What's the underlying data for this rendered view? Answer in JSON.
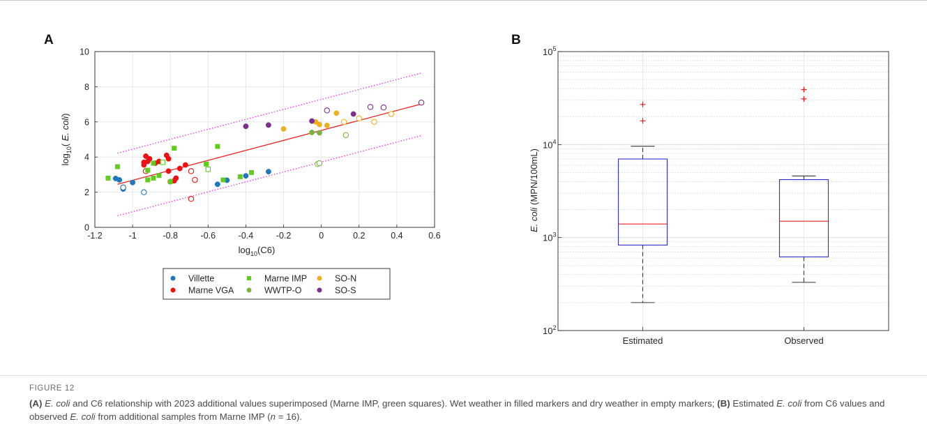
{
  "figure": {
    "label": "FIGURE 12",
    "caption_parts": [
      {
        "text": "(A) ",
        "style": "b"
      },
      {
        "text": "E. coli",
        "style": "i"
      },
      {
        "text": " and C6 relationship with 2023 additional values superimposed (Marne IMP, green squares). Wet weather in filled markers and dry weather in empty markers; ",
        "style": ""
      },
      {
        "text": "(B)",
        "style": "b"
      },
      {
        "text": " Estimated ",
        "style": ""
      },
      {
        "text": "E. coli",
        "style": "i"
      },
      {
        "text": " from C6 values and observed ",
        "style": ""
      },
      {
        "text": "E. coli",
        "style": "i"
      },
      {
        "text": " from additional samples from Marne IMP (",
        "style": ""
      },
      {
        "text": "n",
        "style": "i"
      },
      {
        "text": " = 16).",
        "style": ""
      }
    ]
  },
  "colors": {
    "Villette": "#1f77bd",
    "Marne VGA": "#ee1111",
    "Marne IMP": "#5fcd1e",
    "WWTP-O": "#79b443",
    "SO-N": "#edb120",
    "SO-S": "#7e2f8e",
    "fit": "#ee2222",
    "band": "#f03cf0",
    "box": "#2b2bd8",
    "median": "#ee2222",
    "outlier": "#ee1111",
    "whisker": "#333333"
  },
  "chart_data": [
    {
      "panel": "A",
      "type": "scatter",
      "xlabel": {
        "base": "log",
        "sub": "10",
        "rest": "(C6)"
      },
      "ylabel": {
        "base": "log",
        "sub": "10",
        "open": "( ",
        "italic": "E. coli",
        "close": ")"
      },
      "xlim": [
        -1.2,
        0.6
      ],
      "ylim": [
        0,
        10
      ],
      "xticks": [
        -1.2,
        -1,
        -0.8,
        -0.6,
        -0.4,
        -0.2,
        0,
        0.2,
        0.4,
        0.6
      ],
      "xtick_labels": [
        "-1.2",
        "-1",
        "-0.8",
        "-0.6",
        "-0.4",
        "-0.2",
        "0",
        "0.2",
        "0.4",
        "0.6"
      ],
      "yticks": [
        0,
        2,
        4,
        6,
        8,
        10
      ],
      "ytick_labels": [
        "0",
        "2",
        "4",
        "6",
        "8",
        "10"
      ],
      "grid": true,
      "legend_placement": "below",
      "fit_line": {
        "x": [
          -1.08,
          0.53
        ],
        "y": [
          2.45,
          7.02
        ]
      },
      "prediction_band_upper": {
        "x": [
          -1.08,
          0.53
        ],
        "y": [
          4.22,
          8.78
        ]
      },
      "prediction_band_lower": {
        "x": [
          -1.08,
          0.53
        ],
        "y": [
          0.66,
          5.22
        ]
      },
      "series": [
        {
          "name": "Villette",
          "marker": "circle",
          "points": [
            {
              "x": -1.09,
              "y": 2.78,
              "filled": true
            },
            {
              "x": -1.07,
              "y": 2.7,
              "filled": true
            },
            {
              "x": -1.05,
              "y": 2.18,
              "filled": true
            },
            {
              "x": -1.05,
              "y": 2.27,
              "filled": false
            },
            {
              "x": -1.0,
              "y": 2.55,
              "filled": true
            },
            {
              "x": -0.94,
              "y": 2.0,
              "filled": false
            },
            {
              "x": -0.55,
              "y": 2.45,
              "filled": true
            },
            {
              "x": -0.5,
              "y": 2.68,
              "filled": true
            },
            {
              "x": -0.4,
              "y": 2.93,
              "filled": true
            },
            {
              "x": -0.28,
              "y": 3.17,
              "filled": true
            }
          ]
        },
        {
          "name": "Marne VGA",
          "marker": "circle",
          "points": [
            {
              "x": -0.94,
              "y": 3.55,
              "filled": true
            },
            {
              "x": -0.94,
              "y": 3.7,
              "filled": true
            },
            {
              "x": -0.93,
              "y": 4.05,
              "filled": true
            },
            {
              "x": -0.92,
              "y": 3.75,
              "filled": true
            },
            {
              "x": -0.91,
              "y": 3.9,
              "filled": true
            },
            {
              "x": -0.93,
              "y": 3.2,
              "filled": false
            },
            {
              "x": -0.88,
              "y": 3.65,
              "filled": true
            },
            {
              "x": -0.86,
              "y": 3.75,
              "filled": true
            },
            {
              "x": -0.82,
              "y": 4.1,
              "filled": true
            },
            {
              "x": -0.81,
              "y": 3.9,
              "filled": true
            },
            {
              "x": -0.81,
              "y": 3.2,
              "filled": true
            },
            {
              "x": -0.8,
              "y": 2.6,
              "filled": true
            },
            {
              "x": -0.78,
              "y": 2.65,
              "filled": true
            },
            {
              "x": -0.77,
              "y": 2.8,
              "filled": true
            },
            {
              "x": -0.75,
              "y": 3.35,
              "filled": true
            },
            {
              "x": -0.72,
              "y": 3.55,
              "filled": true
            },
            {
              "x": -0.69,
              "y": 3.2,
              "filled": false
            },
            {
              "x": -0.67,
              "y": 2.7,
              "filled": false
            },
            {
              "x": -0.69,
              "y": 1.62,
              "filled": false
            }
          ]
        },
        {
          "name": "Marne IMP",
          "marker": "square",
          "points": [
            {
              "x": -1.13,
              "y": 2.8,
              "filled": true
            },
            {
              "x": -1.08,
              "y": 3.45,
              "filled": true
            },
            {
              "x": -0.92,
              "y": 2.7,
              "filled": true
            },
            {
              "x": -0.92,
              "y": 3.25,
              "filled": true
            },
            {
              "x": -0.89,
              "y": 2.8,
              "filled": true
            },
            {
              "x": -0.89,
              "y": 3.65,
              "filled": true
            },
            {
              "x": -0.86,
              "y": 2.95,
              "filled": true
            },
            {
              "x": -0.84,
              "y": 3.7,
              "filled": false
            },
            {
              "x": -0.8,
              "y": 2.6,
              "filled": true
            },
            {
              "x": -0.78,
              "y": 4.5,
              "filled": true
            },
            {
              "x": -0.61,
              "y": 3.6,
              "filled": true
            },
            {
              "x": -0.6,
              "y": 3.3,
              "filled": false
            },
            {
              "x": -0.55,
              "y": 4.6,
              "filled": true
            },
            {
              "x": -0.52,
              "y": 2.7,
              "filled": true
            },
            {
              "x": -0.43,
              "y": 2.88,
              "filled": true
            },
            {
              "x": -0.37,
              "y": 3.12,
              "filled": true
            }
          ]
        },
        {
          "name": "WWTP-O",
          "marker": "circle",
          "points": [
            {
              "x": -0.05,
              "y": 5.4,
              "filled": true
            },
            {
              "x": -0.01,
              "y": 5.38,
              "filled": true
            },
            {
              "x": -0.02,
              "y": 3.6,
              "filled": false
            },
            {
              "x": -0.01,
              "y": 3.65,
              "filled": false
            },
            {
              "x": 0.13,
              "y": 5.25,
              "filled": false
            }
          ]
        },
        {
          "name": "SO-N",
          "marker": "circle",
          "points": [
            {
              "x": -0.2,
              "y": 5.6,
              "filled": true
            },
            {
              "x": -0.03,
              "y": 6.0,
              "filled": true
            },
            {
              "x": -0.01,
              "y": 5.85,
              "filled": true
            },
            {
              "x": 0.03,
              "y": 5.8,
              "filled": true
            },
            {
              "x": 0.08,
              "y": 6.5,
              "filled": true
            },
            {
              "x": 0.12,
              "y": 6.0,
              "filled": false
            },
            {
              "x": 0.2,
              "y": 6.2,
              "filled": false
            },
            {
              "x": 0.28,
              "y": 6.0,
              "filled": false
            },
            {
              "x": 0.37,
              "y": 6.45,
              "filled": false
            }
          ]
        },
        {
          "name": "SO-S",
          "marker": "circle",
          "points": [
            {
              "x": -0.4,
              "y": 5.75,
              "filled": true
            },
            {
              "x": -0.28,
              "y": 5.82,
              "filled": true
            },
            {
              "x": -0.05,
              "y": 6.05,
              "filled": true
            },
            {
              "x": 0.03,
              "y": 6.65,
              "filled": false
            },
            {
              "x": 0.17,
              "y": 6.45,
              "filled": true
            },
            {
              "x": 0.26,
              "y": 6.85,
              "filled": false
            },
            {
              "x": 0.33,
              "y": 6.82,
              "filled": false
            },
            {
              "x": 0.53,
              "y": 7.1,
              "filled": false
            }
          ]
        }
      ],
      "legend": [
        {
          "name": "Villette",
          "marker": "circle"
        },
        {
          "name": "Marne IMP",
          "marker": "square"
        },
        {
          "name": "SO-N",
          "marker": "circle"
        },
        {
          "name": "Marne VGA",
          "marker": "circle"
        },
        {
          "name": "WWTP-O",
          "marker": "circle"
        },
        {
          "name": "SO-S",
          "marker": "circle"
        }
      ]
    },
    {
      "panel": "B",
      "type": "box",
      "yscale": "log",
      "ylim": [
        100,
        100000
      ],
      "ylabel": {
        "italic": "E. coli",
        "rest": " (MPN/100mL)"
      },
      "ytick_labels": [
        {
          "base": "10",
          "exp": "2",
          "value": 100
        },
        {
          "base": "10",
          "exp": "3",
          "value": 1000
        },
        {
          "base": "10",
          "exp": "4",
          "value": 10000
        },
        {
          "base": "10",
          "exp": "5",
          "value": 100000
        }
      ],
      "grid": true,
      "minor_grid": true,
      "categories": [
        "Estimated",
        "Observed"
      ],
      "boxes": [
        {
          "name": "Estimated",
          "whisker_low": 200,
          "q1": 830,
          "median": 1400,
          "q3": 7000,
          "whisker_high": 9600,
          "outliers": [
            18000,
            27000
          ]
        },
        {
          "name": "Observed",
          "whisker_low": 330,
          "q1": 620,
          "median": 1500,
          "q3": 4200,
          "whisker_high": 4600,
          "outliers": [
            31000,
            39000
          ]
        }
      ]
    }
  ]
}
